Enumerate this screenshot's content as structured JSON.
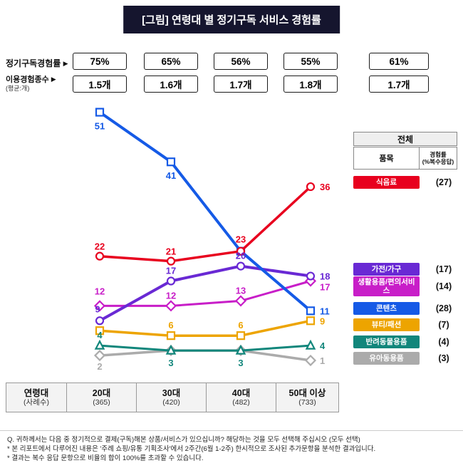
{
  "title": "[그림] 연령대 별 정기구독 서비스 경험률",
  "colors": {
    "title_bar_bg": "#15152e"
  },
  "metrics": {
    "arrow": "▶",
    "row1_label": "정기구독경험률",
    "row1_values": [
      "75%",
      "65%",
      "56%",
      "55%"
    ],
    "row1_total": "61%",
    "row2_label": "이용경험종수",
    "row2_sublabel": "(평균:개)",
    "row2_values": [
      "1.5개",
      "1.6개",
      "1.7개",
      "1.8개"
    ],
    "row2_total": "1.7개"
  },
  "legend": {
    "header": "전체",
    "col_item": "품목",
    "col_rate_line1": "경험률",
    "col_rate_line2": "(%복수응답)",
    "rows": [
      {
        "label": "식음료",
        "value": "(27)",
        "color": "#e8001e"
      },
      {
        "label": "가전/가구",
        "value": "(17)",
        "color": "#6929d4"
      },
      {
        "label": "생활용품/편의서비스",
        "value": "(14)",
        "color": "#c81ec8"
      },
      {
        "label": "콘텐츠",
        "value": "(28)",
        "color": "#155ae6"
      },
      {
        "label": "뷰티/패션",
        "value": "(7)",
        "color": "#eda400"
      },
      {
        "label": "반려동물용품",
        "value": "(4)",
        "color": "#11867b"
      },
      {
        "label": "유아동용품",
        "value": "(3)",
        "color": "#ababab"
      }
    ]
  },
  "chart_data": {
    "type": "line",
    "title": "[그림] 연령대 별 정기구독 서비스 경험률",
    "categories": [
      "20대",
      "30대",
      "40대",
      "50대 이상"
    ],
    "ylim": [
      0,
      55
    ],
    "grid": false,
    "legend_position": "right",
    "series": [
      {
        "name": "식음료",
        "color": "#e8001e",
        "marker": "circle",
        "values": [
          22,
          21,
          23,
          36
        ],
        "labels": [
          "22",
          "21",
          "23",
          "36"
        ]
      },
      {
        "name": "가전/가구",
        "color": "#6929d4",
        "marker": "circle",
        "values": [
          9,
          17,
          20,
          18
        ],
        "labels": [
          "9",
          "17",
          "20",
          "18"
        ]
      },
      {
        "name": "생활용품/편의서비스",
        "color": "#c81ec8",
        "marker": "diamond",
        "values": [
          12,
          12,
          13,
          17
        ],
        "labels": [
          "12",
          "12",
          "13",
          "17"
        ]
      },
      {
        "name": "콘텐츠",
        "color": "#155ae6",
        "marker": "square",
        "values": [
          51,
          41,
          23,
          11
        ],
        "labels": [
          "51",
          "41",
          "",
          "11"
        ]
      },
      {
        "name": "뷰티/패션",
        "color": "#eda400",
        "marker": "square",
        "values": [
          7,
          6,
          6,
          9
        ],
        "labels": [
          "",
          "6",
          "6",
          "9"
        ]
      },
      {
        "name": "반려동물용품",
        "color": "#11867b",
        "marker": "triangle",
        "values": [
          4,
          3,
          3,
          4
        ],
        "labels": [
          "4",
          "3",
          "3",
          "4"
        ]
      },
      {
        "name": "유아동용품",
        "color": "#ababab",
        "marker": "diamond",
        "values": [
          2,
          3,
          3,
          1
        ],
        "labels": [
          "2",
          "",
          "",
          "1"
        ]
      }
    ]
  },
  "age_table": {
    "header_line1": "연령대",
    "header_line2": "(사례수)",
    "columns": [
      {
        "name": "20대",
        "count": "(365)"
      },
      {
        "name": "30대",
        "count": "(420)"
      },
      {
        "name": "40대",
        "count": "(482)"
      },
      {
        "name": "50대 이상",
        "count": "(733)"
      }
    ]
  },
  "footnotes": [
    "Q. 귀하께서는 다음 중 정기적으로 결제(구독)해본 상품/서비스가 있으십니까? 해당하는 것을 모두 선택해 주십시오 (모두 선택)",
    "* 본 리포트에서 다루어진 내용은 '주례 쇼핑/유통 기획조사'에서 2주간(6월 1-2주) 한시적으로 조사된 추가문항을 분석한 결과입니다.",
    "* 결과는 복수 응답 문항으로 비율의 합이 100%를 초과할 수 있습니다."
  ]
}
